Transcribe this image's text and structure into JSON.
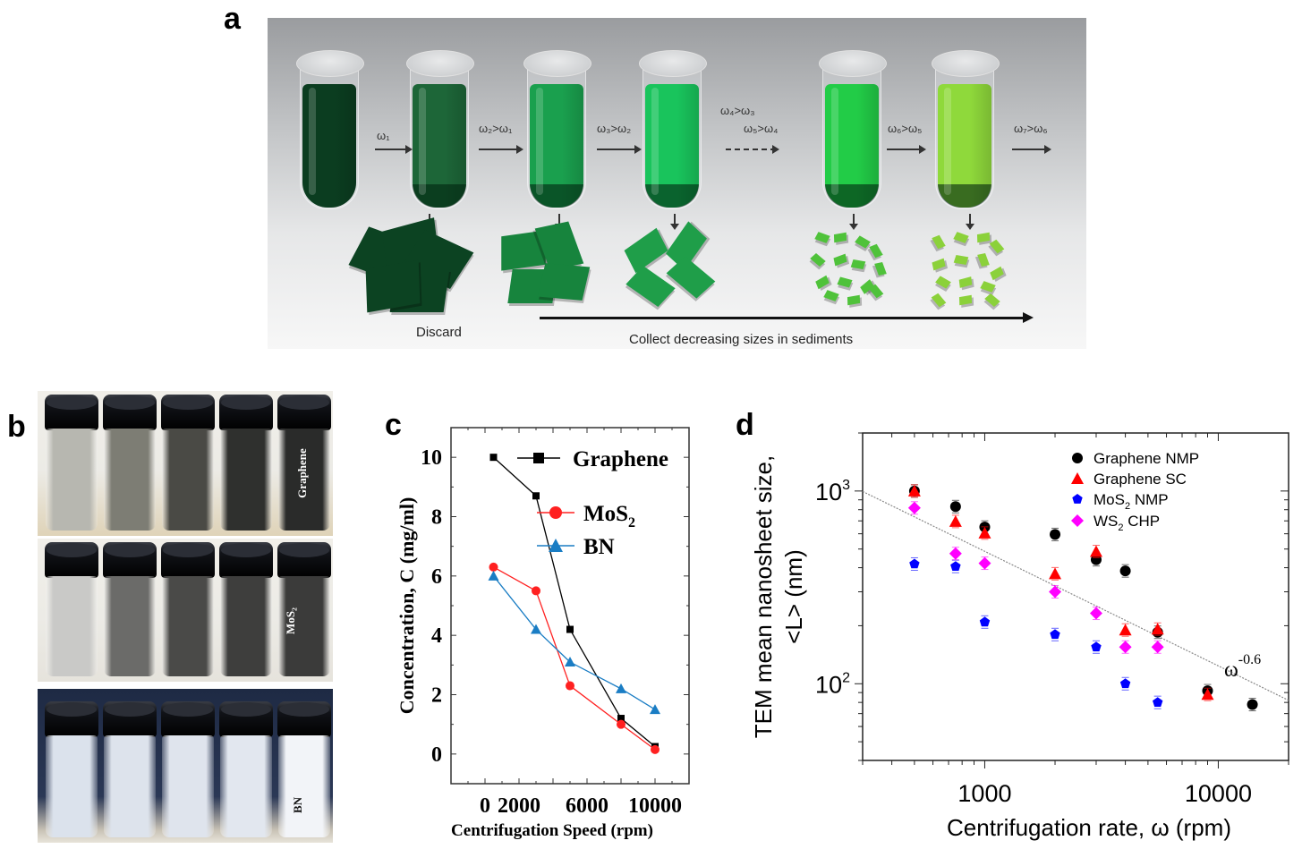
{
  "panels": {
    "a": {
      "letter": "a",
      "step_labels": [
        "ω₁",
        "ω₂>ω₁",
        "ω₃>ω₂",
        "ω₄>ω₃",
        "ω₅>ω₄",
        "ω₆>ω₅",
        "ω₇>ω₆"
      ],
      "discard_label": "Discard",
      "collect_label": "Collect decreasing sizes in sediments",
      "tube_colors": [
        "#0b3d20",
        "#1d6638",
        "#1aa04e",
        "#19c45c",
        "#22cc47",
        "#8fd93b"
      ],
      "flake_colors": [
        "#0c4322",
        "#17843d",
        "#1f9e49",
        "#4fc23a",
        "#8bd13a"
      ]
    },
    "b": {
      "letter": "b",
      "rows": [
        {
          "material": "Graphene",
          "vial_colors": [
            "#b7b7b0",
            "#7d7d74",
            "#4a4a45",
            "#2f302e",
            "#2a2b2a"
          ],
          "background": "#dfd3b8"
        },
        {
          "material": "MoS₂",
          "vial_colors": [
            "#c9c9c7",
            "#6b6b69",
            "#4a4a48",
            "#3e3e3d",
            "#3b3b3a"
          ],
          "background": "#e6e3dc"
        },
        {
          "material": "BN",
          "vial_colors": [
            "#dbe2ec",
            "#dde3ec",
            "#dfe4ed",
            "#e2e7ef",
            "#f2f4f8"
          ],
          "background": "#1e2a44"
        }
      ]
    },
    "c": {
      "letter": "c"
    },
    "d": {
      "letter": "d",
      "trend_label": "ω",
      "trend_exponent": "-0.6"
    }
  },
  "chart_data": [
    {
      "panel": "c",
      "type": "line",
      "title": "",
      "xlabel": "Centrifugation Speed (rpm)",
      "ylabel": "Concentration, C (mg/ml)",
      "xlim": [
        -2000,
        12000
      ],
      "ylim": [
        -1,
        11
      ],
      "x_ticks": [
        "0",
        "2000",
        "6000",
        "10000"
      ],
      "y_ticks": [
        "0",
        "2",
        "4",
        "6",
        "8",
        "10"
      ],
      "legend_position": "upper right",
      "series": [
        {
          "name": "Graphene",
          "color": "#000000",
          "marker": "square",
          "x": [
            500,
            3000,
            5000,
            8000,
            10000
          ],
          "values": [
            10.0,
            8.7,
            4.2,
            1.2,
            0.25
          ]
        },
        {
          "name": "MoS₂",
          "color": "#ff2020",
          "marker": "circle",
          "x": [
            500,
            3000,
            5000,
            8000,
            10000
          ],
          "values": [
            6.3,
            5.5,
            2.3,
            1.0,
            0.15
          ]
        },
        {
          "name": "BN",
          "color": "#1a7dc4",
          "marker": "triangle",
          "x": [
            500,
            3000,
            5000,
            8000,
            10000
          ],
          "values": [
            6.0,
            4.2,
            3.1,
            2.2,
            1.5
          ]
        }
      ],
      "grid": false
    },
    {
      "panel": "d",
      "type": "scatter",
      "title": "",
      "xlabel": "Centrifugation rate, ω (rpm)",
      "ylabel": "TEM mean nanosheet size, <L> (nm)",
      "xscale": "log",
      "yscale": "log",
      "xlim": [
        300,
        20000
      ],
      "ylim": [
        40,
        2000
      ],
      "x_ticks": [
        "1000",
        "10000"
      ],
      "y_ticks": [
        "10²",
        "10³"
      ],
      "legend_position": "upper right",
      "series": [
        {
          "name": "Graphene NMP",
          "color": "#000000",
          "marker": "circle",
          "x": [
            500,
            750,
            1000,
            2000,
            3000,
            4000,
            5500,
            9000,
            14000
          ],
          "values": [
            1000,
            830,
            650,
            595,
            440,
            385,
            185,
            92,
            78
          ]
        },
        {
          "name": "Graphene SC",
          "color": "#ff0000",
          "marker": "triangle",
          "x": [
            500,
            750,
            1000,
            2000,
            3000,
            4000,
            5500,
            9000
          ],
          "values": [
            1000,
            695,
            605,
            372,
            485,
            190,
            192,
            88
          ]
        },
        {
          "name": "MoS₂ NMP",
          "color": "#0000ff",
          "marker": "pentagon",
          "x": [
            500,
            750,
            1000,
            2000,
            3000,
            4000,
            5500
          ],
          "values": [
            418,
            406,
            209,
            180,
            155,
            100,
            80
          ]
        },
        {
          "name": "WS₂ CHP",
          "color": "#ff00ff",
          "marker": "diamond",
          "x": [
            500,
            750,
            1000,
            2000,
            3000,
            4000,
            5500
          ],
          "values": [
            817,
            474,
            422,
            300,
            232,
            155,
            155
          ]
        }
      ],
      "annotations": [
        {
          "text": "ω^-0.6",
          "type": "power-law fit line",
          "x": [
            300,
            20000
          ],
          "y": [
            995,
            82
          ]
        }
      ],
      "grid": false
    }
  ]
}
